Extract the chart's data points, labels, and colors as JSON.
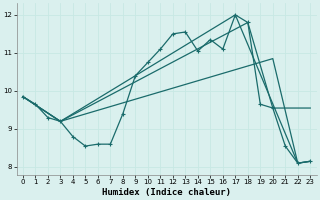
{
  "xlabel": "Humidex (Indice chaleur)",
  "bg_color": "#daf0ee",
  "line_color": "#1a6b6b",
  "grid_color": "#c8e8e4",
  "xlim": [
    -0.5,
    23.5
  ],
  "ylim": [
    7.8,
    12.3
  ],
  "yticks": [
    8,
    9,
    10,
    11,
    12
  ],
  "xticks": [
    0,
    1,
    2,
    3,
    4,
    5,
    6,
    7,
    8,
    9,
    10,
    11,
    12,
    13,
    14,
    15,
    16,
    17,
    18,
    19,
    20,
    21,
    22,
    23
  ],
  "line1_x": [
    0,
    1,
    2,
    3,
    4,
    5,
    6,
    7,
    8,
    9,
    10,
    11,
    12,
    13,
    14,
    15,
    16,
    17,
    18,
    19,
    20,
    21,
    22,
    23
  ],
  "line1_y": [
    9.85,
    9.65,
    9.3,
    9.2,
    8.8,
    8.55,
    8.6,
    8.6,
    9.4,
    10.4,
    10.75,
    11.1,
    11.5,
    11.55,
    11.05,
    11.35,
    11.1,
    12.0,
    11.8,
    9.65,
    9.55,
    8.55,
    8.1,
    8.15
  ],
  "line2_x": [
    0,
    3,
    17,
    22,
    23
  ],
  "line2_y": [
    9.85,
    9.2,
    12.0,
    8.1,
    8.15
  ],
  "line3_x": [
    0,
    3,
    18,
    20,
    22,
    23
  ],
  "line3_y": [
    9.85,
    9.2,
    11.8,
    9.55,
    9.55,
    9.55
  ],
  "line4_x": [
    0,
    3,
    20,
    22,
    23
  ],
  "line4_y": [
    9.85,
    9.2,
    10.85,
    8.1,
    8.15
  ]
}
